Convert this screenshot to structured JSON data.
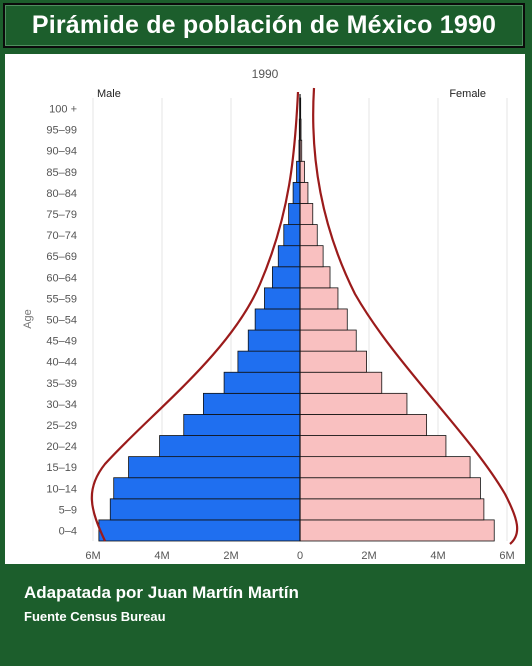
{
  "header": {
    "title": "Pirámide de población de México 1990"
  },
  "footer": {
    "credit": "Adapatada por Juan Martín Martín",
    "source": "Fuente Census Bureau"
  },
  "colors": {
    "male": "#1f6ff0",
    "female": "#f9c0c0",
    "outline_curve": "#9b1b1b",
    "background": "#1c5e2c"
  },
  "chart_data": {
    "type": "bar",
    "orientation": "horizontal-pyramid",
    "title": "1990",
    "ylabel": "Age",
    "xlabel": "",
    "categories": [
      "0–4",
      "5–9",
      "10–14",
      "15–19",
      "20–24",
      "25–29",
      "30–34",
      "35–39",
      "40–44",
      "45–49",
      "50–54",
      "55–59",
      "60–64",
      "65–69",
      "70–74",
      "75–79",
      "80–84",
      "85–89",
      "90–94",
      "95–99",
      "100 +"
    ],
    "series": [
      {
        "name": "Male",
        "values": [
          5.83,
          5.5,
          5.4,
          4.97,
          4.07,
          3.37,
          2.8,
          2.2,
          1.8,
          1.5,
          1.3,
          1.03,
          0.8,
          0.63,
          0.47,
          0.33,
          0.2,
          0.1,
          0.03,
          0.02,
          0.01
        ]
      },
      {
        "name": "Female",
        "values": [
          5.63,
          5.33,
          5.23,
          4.93,
          4.23,
          3.67,
          3.1,
          2.37,
          1.93,
          1.63,
          1.37,
          1.1,
          0.87,
          0.67,
          0.5,
          0.37,
          0.23,
          0.13,
          0.05,
          0.03,
          0.02
        ]
      }
    ],
    "xlim": [
      -6,
      6
    ],
    "xticks": [
      -6,
      -4,
      -2,
      0,
      2,
      4,
      6
    ],
    "xtick_labels": [
      "6M",
      "4M",
      "2M",
      "0",
      "2M",
      "4M",
      "6M"
    ],
    "unit": "millions",
    "grid": true,
    "legend": "top"
  }
}
